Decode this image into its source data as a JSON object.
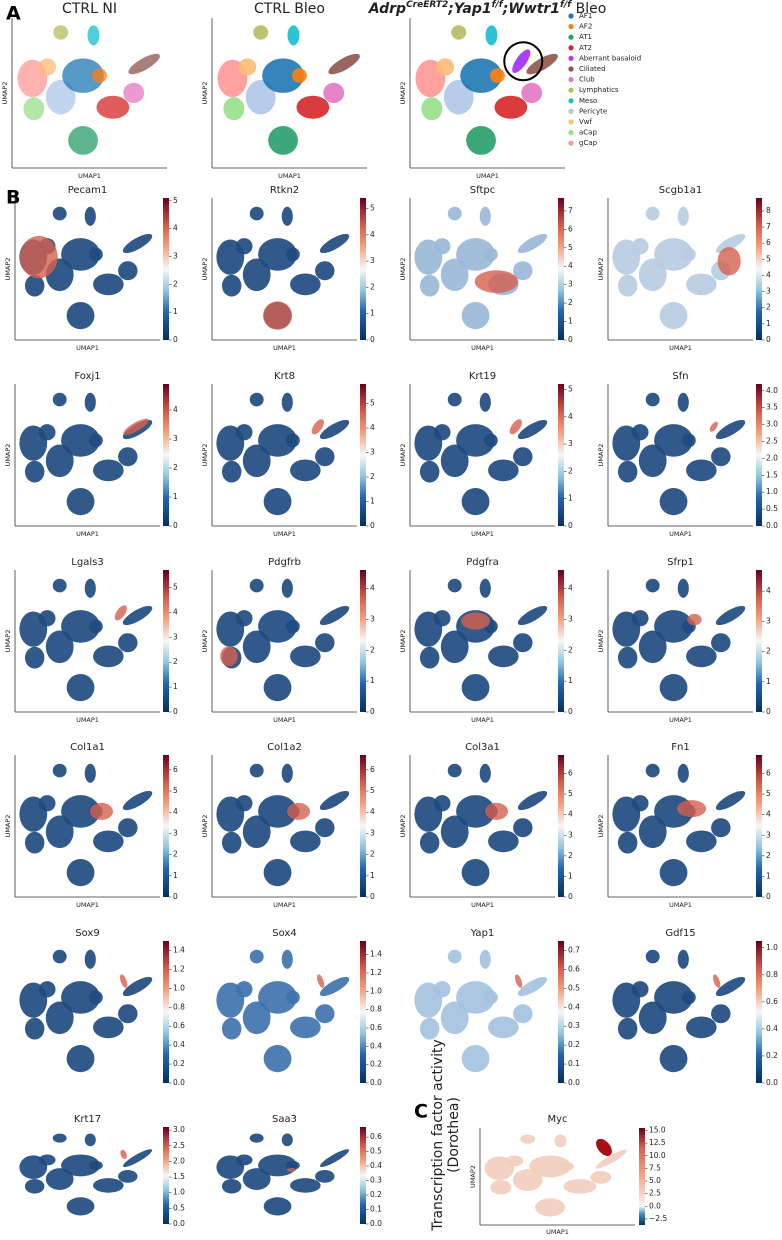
{
  "panel_labels": [
    "A",
    "B",
    "C"
  ],
  "axis_x": "UMAP1",
  "axis_y": "UMAP2",
  "overview": {
    "plots": [
      {
        "title": [
          {
            "text": "CTRL NI",
            "sup": false,
            "italic": false
          }
        ]
      },
      {
        "title": [
          {
            "text": "CTRL Bleo",
            "sup": false,
            "italic": false
          }
        ]
      },
      {
        "title": [
          {
            "text": "Adrp",
            "sup": false,
            "italic": true
          },
          {
            "text": "CreERT2",
            "sup": true,
            "italic": true
          },
          {
            "text": ";Yap1",
            "sup": false,
            "italic": true
          },
          {
            "text": "f/f",
            "sup": true,
            "italic": true
          },
          {
            "text": ";Wwtr1",
            "sup": false,
            "italic": true
          },
          {
            "text": "f/f",
            "sup": true,
            "italic": true
          },
          {
            "text": " Bleo",
            "sup": false,
            "italic": false
          }
        ]
      }
    ],
    "legend": [
      {
        "name": "AF1",
        "color": "#1f77b4"
      },
      {
        "name": "AF2",
        "color": "#ff7f0e"
      },
      {
        "name": "AT1",
        "color": "#279e68"
      },
      {
        "name": "AT2",
        "color": "#d62728"
      },
      {
        "name": "Aberrant basaloid",
        "color": "#aa40fc"
      },
      {
        "name": "Ciliated",
        "color": "#8c564b"
      },
      {
        "name": "Club",
        "color": "#e377c2"
      },
      {
        "name": "Lymphatics",
        "color": "#b5bd61"
      },
      {
        "name": "Meso",
        "color": "#17becf"
      },
      {
        "name": "Pericyte",
        "color": "#aec7e8"
      },
      {
        "name": "Vwf",
        "color": "#ffbb78"
      },
      {
        "name": "aCap",
        "color": "#98df8a"
      },
      {
        "name": "gCap",
        "color": "#ff9896"
      }
    ]
  },
  "genes": [
    {
      "title": "Pecam1",
      "axes": true,
      "clim": [
        0,
        5.1
      ],
      "ticks": [
        0,
        1,
        2,
        3,
        4,
        5
      ]
    },
    {
      "title": "Rtkn2",
      "axes": true,
      "clim": [
        0,
        5.4
      ],
      "ticks": [
        0,
        1,
        2,
        3,
        4,
        5
      ]
    },
    {
      "title": "Sftpc",
      "axes": true,
      "clim": [
        0,
        7.7
      ],
      "ticks": [
        0,
        1,
        2,
        3,
        4,
        5,
        6,
        7
      ]
    },
    {
      "title": "Scgb1a1",
      "axes": true,
      "clim": [
        0,
        8.8
      ],
      "ticks": [
        0,
        1,
        2,
        3,
        4,
        5,
        6,
        7,
        8
      ]
    },
    {
      "title": "Foxj1",
      "axes": true,
      "clim": [
        0,
        4.9
      ],
      "ticks": [
        0,
        1,
        2,
        3,
        4
      ]
    },
    {
      "title": "Krt8",
      "axes": true,
      "clim": [
        0,
        5.8
      ],
      "ticks": [
        0,
        1,
        2,
        3,
        4,
        5
      ]
    },
    {
      "title": "Krt19",
      "axes": true,
      "clim": [
        0,
        5.2
      ],
      "ticks": [
        0,
        1,
        2,
        3,
        4,
        5
      ]
    },
    {
      "title": "Sfn",
      "axes": true,
      "clim": [
        0,
        4.2
      ],
      "ticks": [
        {
          "value": 0,
          "label": "0.0"
        },
        0.5,
        {
          "value": 1,
          "label": "1.0"
        },
        1.5,
        {
          "value": 2,
          "label": "2.0"
        },
        2.5,
        {
          "value": 3,
          "label": "3.0"
        },
        3.5,
        {
          "value": 4,
          "label": "4.0"
        }
      ]
    },
    {
      "title": "Lgals3",
      "axes": true,
      "clim": [
        0,
        5.7
      ],
      "ticks": [
        0,
        1,
        2,
        3,
        4,
        5
      ]
    },
    {
      "title": "Pdgfrb",
      "axes": true,
      "clim": [
        0,
        4.6
      ],
      "ticks": [
        0,
        1,
        2,
        3,
        4
      ]
    },
    {
      "title": "Pdgfra",
      "axes": true,
      "clim": [
        0,
        4.6
      ],
      "ticks": [
        0,
        1,
        2,
        3,
        4
      ]
    },
    {
      "title": "Sfrp1",
      "axes": true,
      "clim": [
        0,
        4.7
      ],
      "ticks": [
        0,
        1,
        2,
        3,
        4
      ]
    },
    {
      "title": "Col1a1",
      "axes": true,
      "clim": [
        0,
        6.7
      ],
      "ticks": [
        0,
        1,
        2,
        3,
        4,
        5,
        6
      ]
    },
    {
      "title": "Col1a2",
      "axes": true,
      "clim": [
        0,
        6.7
      ],
      "ticks": [
        0,
        1,
        2,
        3,
        4,
        5,
        6
      ]
    },
    {
      "title": "Col3a1",
      "axes": true,
      "clim": [
        0,
        6.9
      ],
      "ticks": [
        0,
        1,
        2,
        3,
        4,
        5,
        6
      ]
    },
    {
      "title": "Fn1",
      "axes": true,
      "clim": [
        0,
        6.9
      ],
      "ticks": [
        0,
        1,
        2,
        3,
        4,
        5,
        6
      ]
    },
    {
      "title": "Sox9",
      "axes": false,
      "clim": [
        0,
        1.5
      ],
      "ticks": [
        {
          "value": 0,
          "label": "0.0"
        },
        0.2,
        0.4,
        0.6,
        0.8,
        {
          "value": 1,
          "label": "1.0"
        },
        1.2,
        1.4
      ]
    },
    {
      "title": "Sox4",
      "axes": false,
      "clim": [
        0,
        1.55
      ],
      "ticks": [
        {
          "value": 0,
          "label": "0.0"
        },
        0.2,
        0.4,
        0.6,
        0.8,
        {
          "value": 1,
          "label": "1.0"
        },
        1.2,
        1.4
      ]
    },
    {
      "title": "Yap1",
      "axes": false,
      "clim": [
        0,
        0.75
      ],
      "ticks": [
        {
          "value": 0,
          "label": "0.0"
        },
        0.1,
        0.2,
        0.3,
        0.4,
        0.5,
        0.6,
        0.7
      ]
    },
    {
      "title": "Gdf15",
      "axes": false,
      "clim": [
        0,
        1.05
      ],
      "ticks": [
        {
          "value": 0,
          "label": "0.0"
        },
        0.2,
        0.4,
        0.6,
        0.8,
        {
          "value": 1,
          "label": "1.0"
        }
      ]
    },
    {
      "title": "Krt17",
      "axes": false,
      "clim": [
        0,
        3.1
      ],
      "ticks": [
        {
          "value": 0,
          "label": "0.0"
        },
        0.5,
        {
          "value": 1,
          "label": "1.0"
        },
        1.5,
        {
          "value": 2,
          "label": "2.0"
        },
        2.5,
        {
          "value": 3,
          "label": "3.0"
        }
      ]
    },
    {
      "title": "Saa3",
      "axes": false,
      "clim": [
        0,
        0.67
      ],
      "ticks": [
        {
          "value": 0,
          "label": "0.0"
        },
        0.1,
        0.2,
        0.3,
        0.4,
        0.5,
        0.6
      ]
    }
  ],
  "tf": {
    "side_label": [
      "Transcription factor activity",
      "(Dorothea)"
    ],
    "title": "Myc",
    "axes": true,
    "clim": [
      -3.7,
      15.5
    ],
    "ticks": [
      {
        "value": 15,
        "label": "15.0"
      },
      12.5,
      {
        "value": 10,
        "label": "10.0"
      },
      7.5,
      {
        "value": 5,
        "label": "5.0"
      },
      2.5,
      {
        "value": 0,
        "label": "0.0"
      },
      {
        "value": -2.5,
        "label": "−2.5"
      }
    ]
  }
}
